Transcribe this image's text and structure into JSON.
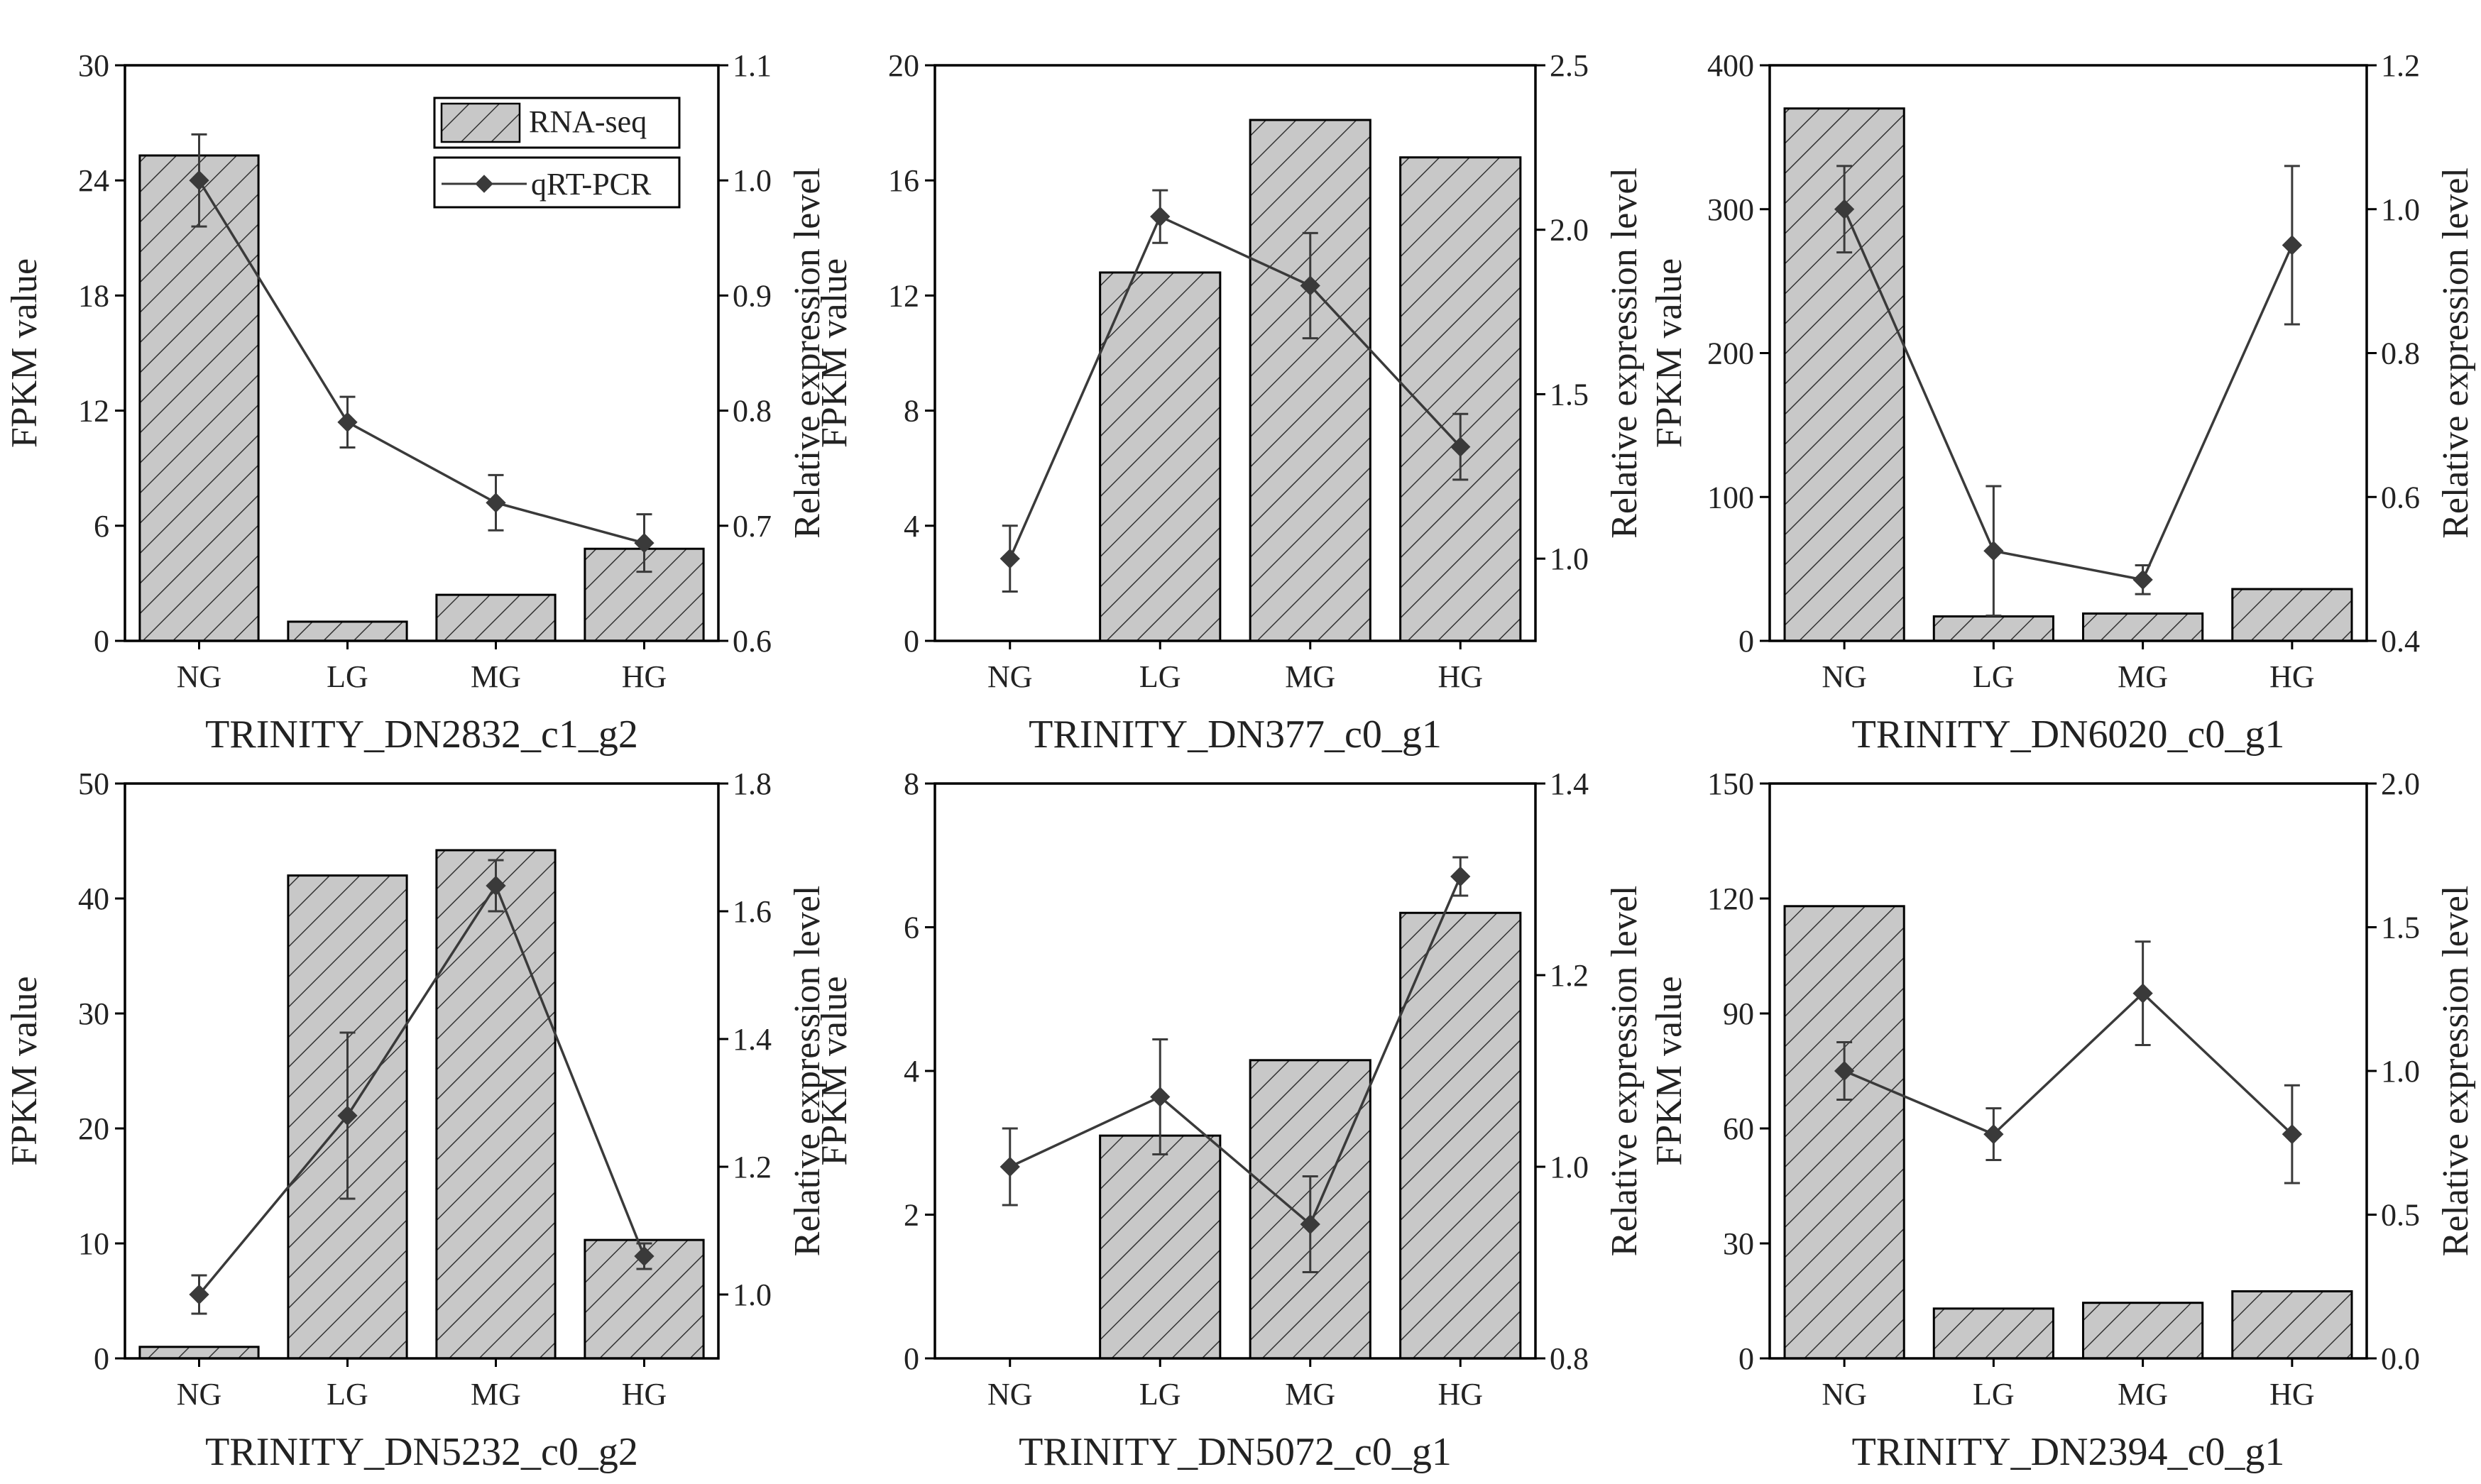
{
  "figure": {
    "legend": {
      "bar_label": "RNA-seq",
      "line_label": "qRT-PCR"
    },
    "colors": {
      "bar_fill": "#c8c8c8",
      "hatch": "#333333",
      "line": "#3a3a3a",
      "axis": "#000000"
    }
  },
  "chart_data": [
    {
      "type": "bar+line",
      "title": "TRINITY_DN2832_c1_g2",
      "categories": [
        "NG",
        "LG",
        "MG",
        "HG"
      ],
      "ylabel": "FPKM value",
      "y2label": "Relative expression level",
      "ylim": [
        0,
        30
      ],
      "yticks": [
        "0",
        "6",
        "12",
        "18",
        "24",
        "30"
      ],
      "y2lim": [
        0.6,
        1.1
      ],
      "y2ticks": [
        "0.6",
        "0.7",
        "0.8",
        "0.9",
        "1.0",
        "1.1"
      ],
      "series": [
        {
          "name": "RNA-seq",
          "kind": "bar",
          "axis": "left",
          "values": [
            25.3,
            1.0,
            2.4,
            4.8
          ]
        },
        {
          "name": "qRT-PCR",
          "kind": "line",
          "axis": "right",
          "values": [
            1.0,
            0.79,
            0.72,
            0.685
          ],
          "errors": [
            0.04,
            0.022,
            0.024,
            0.025
          ]
        }
      ],
      "legend": true
    },
    {
      "type": "bar+line",
      "title": "TRINITY_DN377_c0_g1",
      "categories": [
        "NG",
        "LG",
        "MG",
        "HG"
      ],
      "ylabel": "FPKM value",
      "y2label": "Relative expression level",
      "ylim": [
        0,
        20
      ],
      "yticks": [
        "0",
        "4",
        "8",
        "12",
        "16",
        "20"
      ],
      "y2lim": [
        0.75,
        2.5
      ],
      "y2ticks": [
        "1.0",
        "1.5",
        "2.0",
        "2.5"
      ],
      "y2tickvals": [
        1.0,
        1.5,
        2.0,
        2.5
      ],
      "series": [
        {
          "name": "RNA-seq",
          "kind": "bar",
          "axis": "left",
          "values": [
            0,
            12.8,
            18.1,
            16.8
          ]
        },
        {
          "name": "qRT-PCR",
          "kind": "line",
          "axis": "right",
          "values": [
            1.0,
            2.04,
            1.83,
            1.34
          ],
          "errors": [
            0.1,
            0.08,
            0.16,
            0.1
          ]
        }
      ]
    },
    {
      "type": "bar+line",
      "title": "TRINITY_DN6020_c0_g1",
      "categories": [
        "NG",
        "LG",
        "MG",
        "HG"
      ],
      "ylabel": "FPKM value",
      "y2label": "Relative expression level",
      "ylim": [
        0,
        400
      ],
      "yticks": [
        "0",
        "100",
        "200",
        "300",
        "400"
      ],
      "y2lim": [
        0.4,
        1.2
      ],
      "y2ticks": [
        "0.4",
        "0.6",
        "0.8",
        "1.0",
        "1.2"
      ],
      "series": [
        {
          "name": "RNA-seq",
          "kind": "bar",
          "axis": "left",
          "values": [
            370,
            17,
            19,
            36
          ]
        },
        {
          "name": "qRT-PCR",
          "kind": "line",
          "axis": "right",
          "values": [
            1.0,
            0.525,
            0.485,
            0.95
          ],
          "errors": [
            0.06,
            0.09,
            0.02,
            0.11
          ]
        }
      ]
    },
    {
      "type": "bar+line",
      "title": "TRINITY_DN5232_c0_g2",
      "categories": [
        "NG",
        "LG",
        "MG",
        "HG"
      ],
      "ylabel": "FPKM value",
      "y2label": "Relative expression level",
      "ylim": [
        0,
        50
      ],
      "yticks": [
        "0",
        "10",
        "20",
        "30",
        "40",
        "50"
      ],
      "y2lim": [
        0.9,
        1.8
      ],
      "y2ticks": [
        "1.0",
        "1.2",
        "1.4",
        "1.6",
        "1.8"
      ],
      "y2tickvals": [
        1.0,
        1.2,
        1.4,
        1.6,
        1.8
      ],
      "series": [
        {
          "name": "RNA-seq",
          "kind": "bar",
          "axis": "left",
          "values": [
            1.0,
            42,
            44.2,
            10.3
          ]
        },
        {
          "name": "qRT-PCR",
          "kind": "line",
          "axis": "right",
          "values": [
            1.0,
            1.28,
            1.64,
            1.06
          ],
          "errors": [
            0.03,
            0.13,
            0.04,
            0.02
          ]
        }
      ]
    },
    {
      "type": "bar+line",
      "title": "TRINITY_DN5072_c0_g1",
      "categories": [
        "NG",
        "LG",
        "MG",
        "HG"
      ],
      "ylabel": "FPKM value",
      "y2label": "Relative expression level",
      "ylim": [
        0,
        8
      ],
      "yticks": [
        "0",
        "2",
        "4",
        "6",
        "8"
      ],
      "y2lim": [
        0.8,
        1.4
      ],
      "y2ticks": [
        "0.8",
        "1.0",
        "1.2",
        "1.4"
      ],
      "series": [
        {
          "name": "RNA-seq",
          "kind": "bar",
          "axis": "left",
          "values": [
            0,
            3.1,
            4.15,
            6.2
          ]
        },
        {
          "name": "qRT-PCR",
          "kind": "line",
          "axis": "right",
          "values": [
            1.0,
            1.073,
            0.94,
            1.303
          ],
          "errors": [
            0.04,
            0.06,
            0.05,
            0.02
          ]
        }
      ]
    },
    {
      "type": "bar+line",
      "title": "TRINITY_DN2394_c0_g1",
      "categories": [
        "NG",
        "LG",
        "MG",
        "HG"
      ],
      "ylabel": "FPKM value",
      "y2label": "Relative expression level",
      "ylim": [
        0,
        150
      ],
      "yticks": [
        "0",
        "30",
        "60",
        "90",
        "120",
        "150"
      ],
      "y2lim": [
        0,
        2.0
      ],
      "y2ticks": [
        "0.0",
        "0.5",
        "1.0",
        "1.5",
        "2.0"
      ],
      "series": [
        {
          "name": "RNA-seq",
          "kind": "bar",
          "axis": "left",
          "values": [
            118,
            13,
            14.5,
            17.5
          ]
        },
        {
          "name": "qRT-PCR",
          "kind": "line",
          "axis": "right",
          "values": [
            1.0,
            0.78,
            1.27,
            0.78
          ],
          "errors": [
            0.1,
            0.09,
            0.18,
            0.17
          ]
        }
      ]
    }
  ]
}
